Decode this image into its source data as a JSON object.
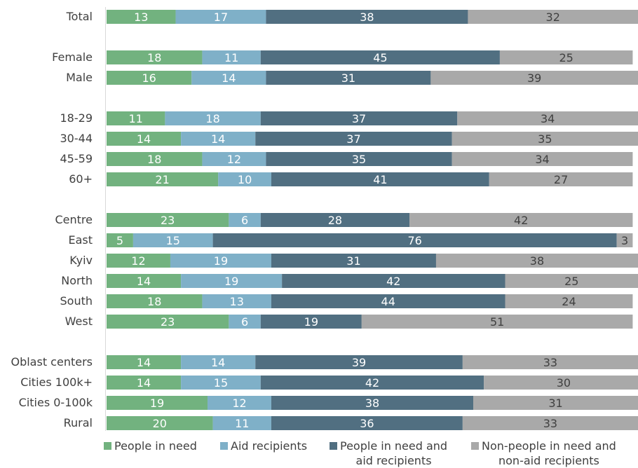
{
  "chart_data": {
    "type": "bar",
    "orientation": "horizontal",
    "stacked": true,
    "categories": [
      "Total",
      "Female",
      "Male",
      "18-29",
      "30-44",
      "45-59",
      "60+",
      "Centre",
      "East",
      "Kyiv",
      "North",
      "South",
      "West",
      "Oblast centers",
      "Cities 100k+",
      "Cities 0-100k",
      "Rural"
    ],
    "groups": [
      [
        "Total"
      ],
      [
        "Female",
        "Male"
      ],
      [
        "18-29",
        "30-44",
        "45-59",
        "60+"
      ],
      [
        "Centre",
        "East",
        "Kyiv",
        "North",
        "South",
        "West"
      ],
      [
        "Oblast centers",
        "Cities 100k+",
        "Cities 0-100k",
        "Rural"
      ]
    ],
    "series": [
      {
        "name": "People in need",
        "color": "#72b27f",
        "values": [
          13,
          18,
          16,
          11,
          14,
          18,
          21,
          23,
          5,
          12,
          14,
          18,
          23,
          14,
          14,
          19,
          20
        ]
      },
      {
        "name": "Aid recipients",
        "color": "#7fb0c8",
        "values": [
          17,
          11,
          14,
          18,
          14,
          12,
          10,
          6,
          15,
          19,
          19,
          13,
          6,
          14,
          15,
          12,
          11
        ]
      },
      {
        "name": "People in need and aid recipients",
        "color": "#516f81",
        "values": [
          38,
          45,
          31,
          37,
          37,
          35,
          41,
          28,
          76,
          31,
          42,
          44,
          19,
          39,
          42,
          38,
          36
        ]
      },
      {
        "name": "Non-people in need and non-aid recipients",
        "color": "#a9a9a9",
        "values": [
          32,
          25,
          39,
          34,
          35,
          34,
          27,
          42,
          3,
          38,
          25,
          24,
          51,
          33,
          30,
          31,
          33
        ]
      }
    ],
    "xlim": [
      0,
      100
    ],
    "grid": false,
    "legend_position": "bottom",
    "legend_labels": [
      "People in need",
      "Aid recipients",
      "People in need and aid recipients",
      "Non-people in need and non-aid recipients"
    ],
    "legend_lines": [
      [
        "People in need"
      ],
      [
        "Aid recipients"
      ],
      [
        "People in need and",
        "aid recipients"
      ],
      [
        "Non-people in need and",
        "non-aid recipients"
      ]
    ]
  }
}
